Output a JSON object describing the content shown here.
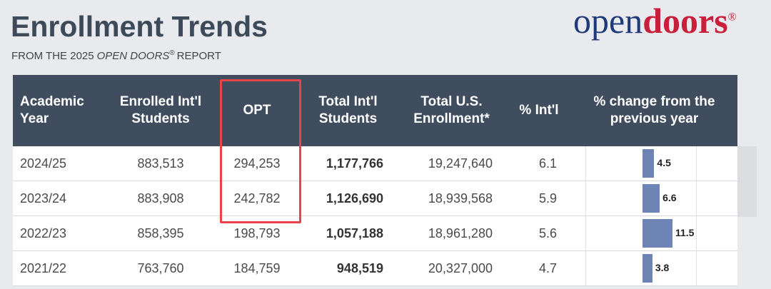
{
  "header": {
    "title": "Enrollment Trends",
    "subtitle": {
      "lead": "FROM THE 2025",
      "emphasis": "OPEN DOORS",
      "mark": "®",
      "tail": "REPORT"
    }
  },
  "logo": {
    "first": "open",
    "second": "doors",
    "mark": "®"
  },
  "table": {
    "columns": [
      "Academic Year",
      "Enrolled Int'l Students",
      "OPT",
      "Total Int'l Students",
      "Total U.S. Enrollment*",
      "% Int'l",
      "% change from the previous year"
    ],
    "rows": [
      [
        "2024/25",
        "883,513",
        "294,253",
        "1,177,766",
        "19,247,640",
        "6.1",
        4.5
      ],
      [
        "2023/24",
        "883,908",
        "242,782",
        "1,126,690",
        "18,939,568",
        "5.9",
        6.6
      ],
      [
        "2022/23",
        "858,395",
        "198,793",
        "1,057,188",
        "18,961,280",
        "5.6",
        11.5
      ],
      [
        "2021/22",
        "763,760",
        "184,759",
        "948,519",
        "20,327,000",
        "4.7",
        3.8
      ]
    ]
  }
}
